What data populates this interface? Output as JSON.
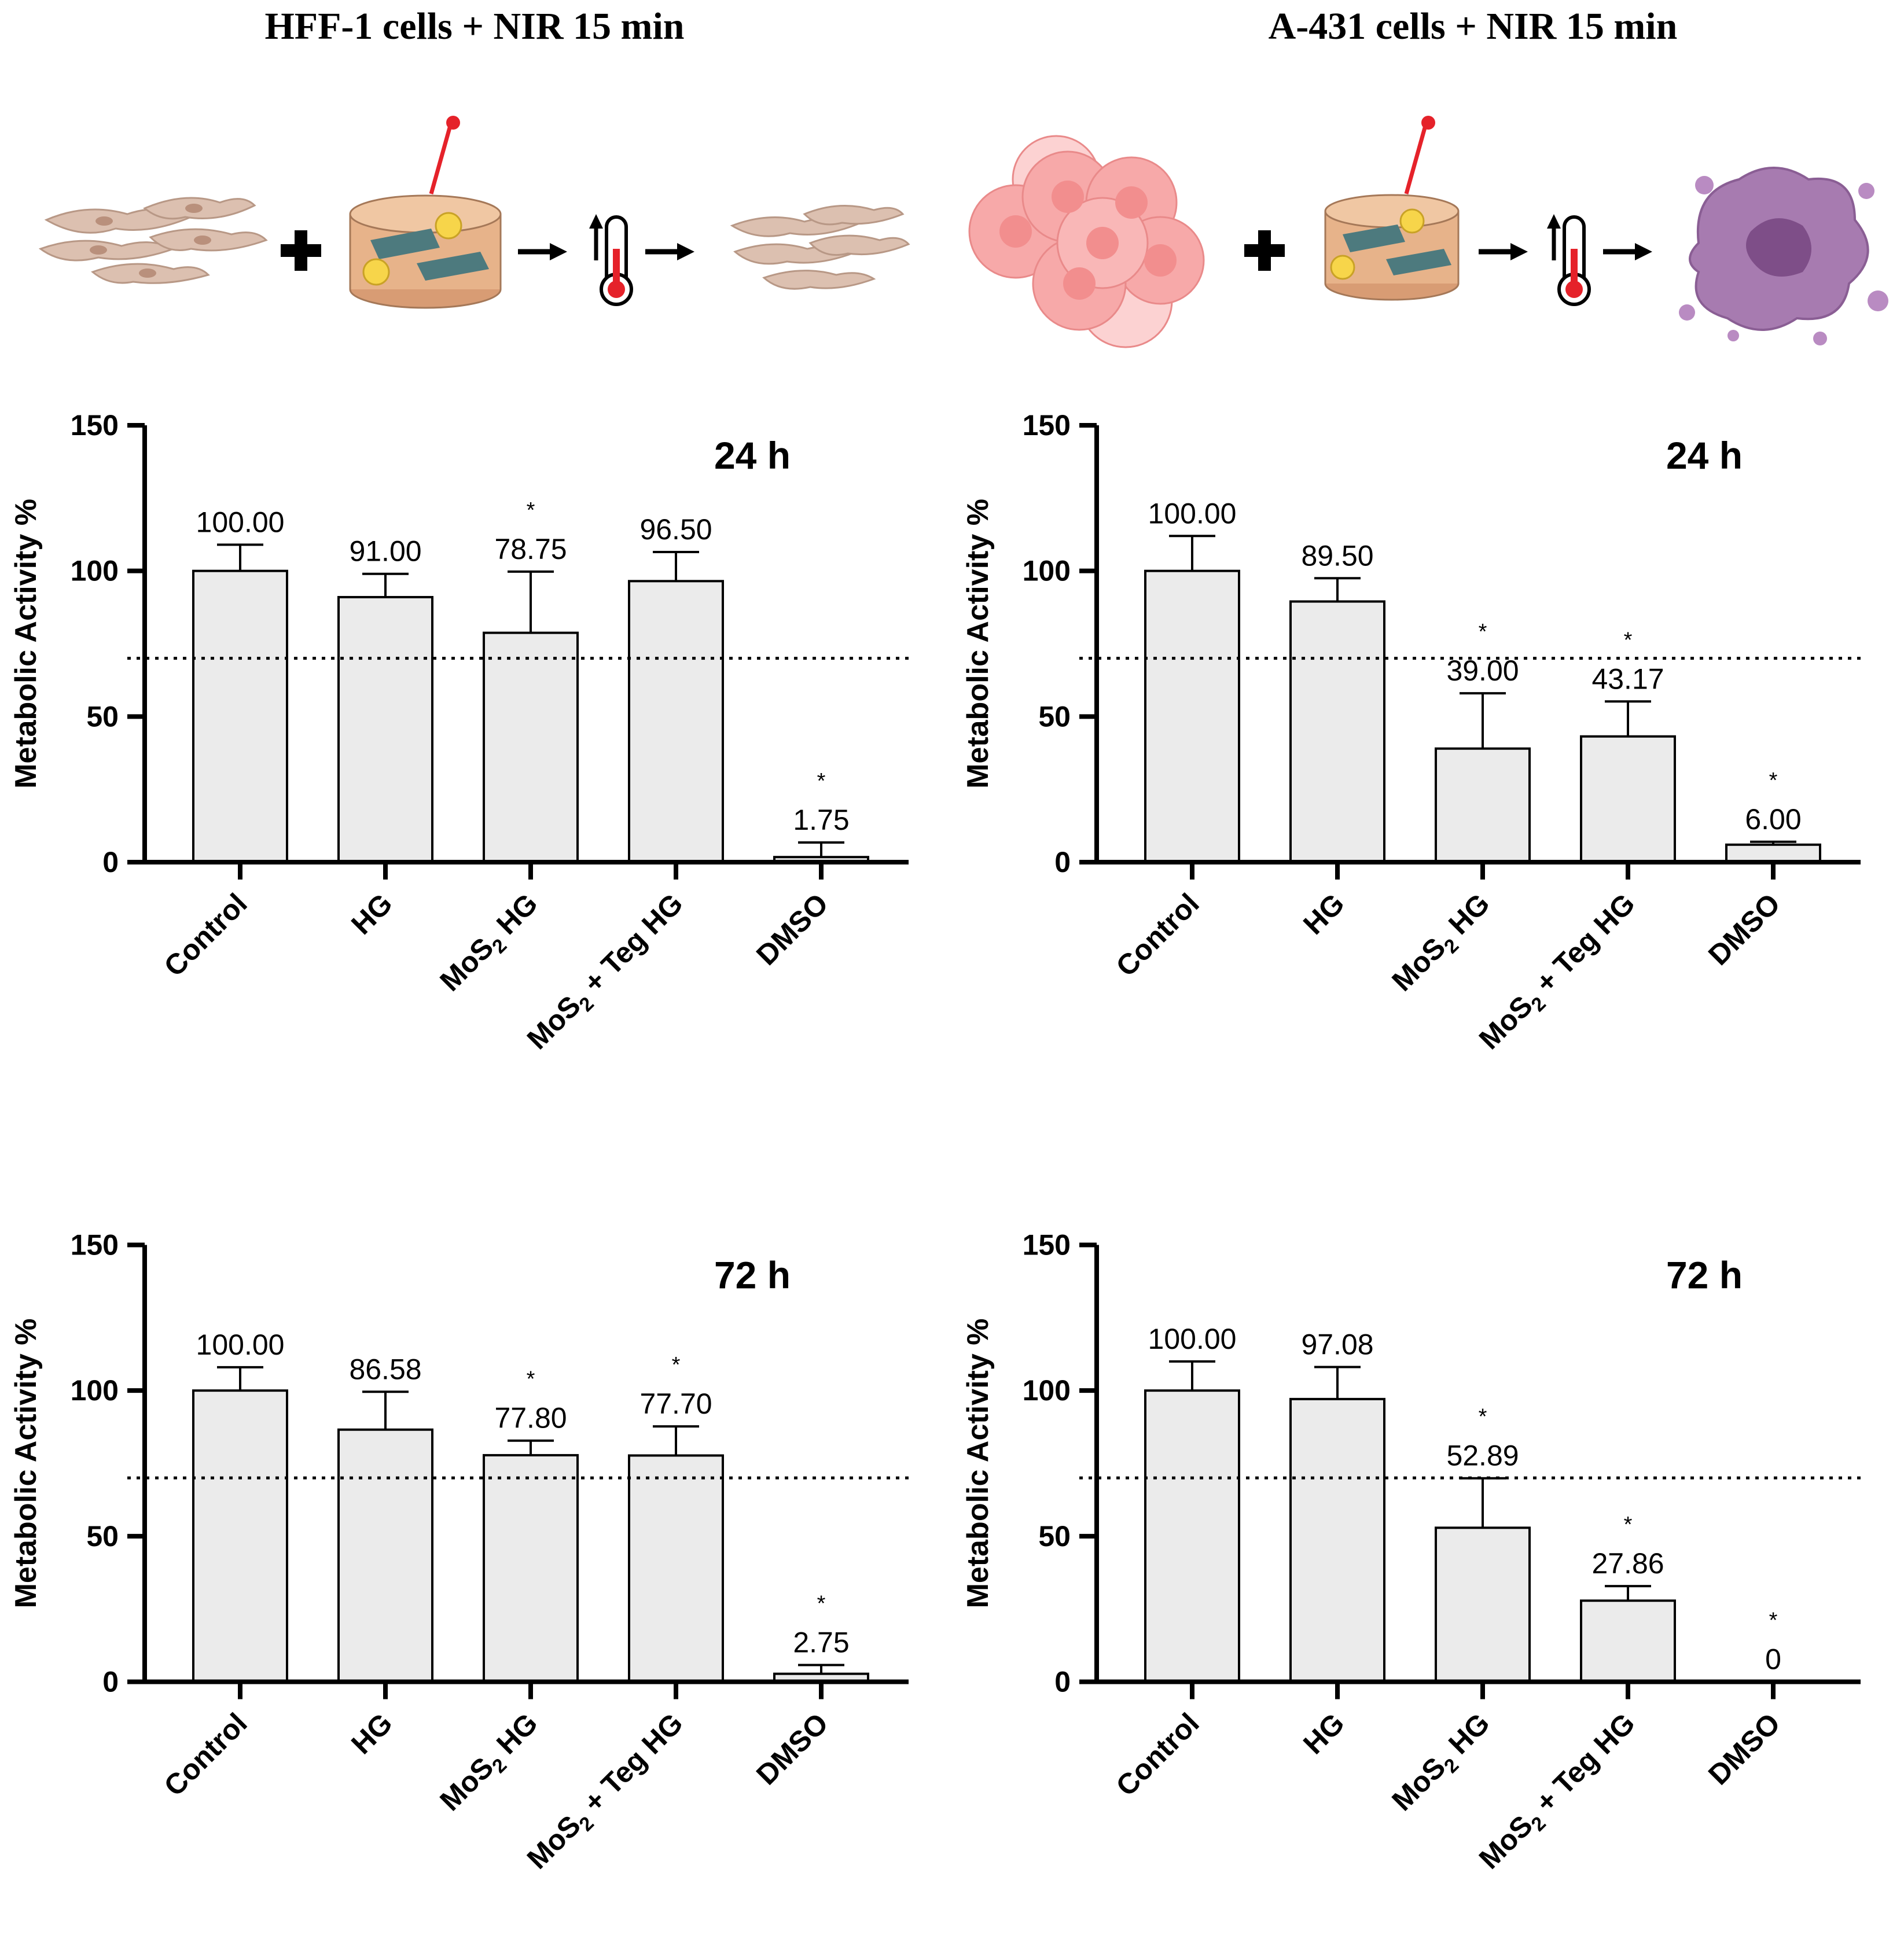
{
  "panels": {
    "left_title": "HFF-1 cells + NIR 15 min",
    "right_title": "A-431 cells + NIR 15 min"
  },
  "colors": {
    "bar_fill": "#ebebeb",
    "bar_stroke": "#000000",
    "normal_cell": "#dcc0b0",
    "cancer_cell": "#f7a9a9",
    "dead_cell": "#a77bb0",
    "laser": "#e5222a",
    "hydrogel": "#e7b38a",
    "particle": "#f7d54a",
    "sheet": "#4d7a7e"
  },
  "chart_data": [
    {
      "type": "bar",
      "panel": "HFF-1 24 h",
      "title": "24 h",
      "ylabel": "Metabolic Activity %",
      "xlabel": "",
      "ylim": [
        0,
        150
      ],
      "yticks": [
        "0",
        "50",
        "100",
        "150"
      ],
      "threshold": 70,
      "categories": [
        "Control",
        "HG",
        "MoS2 HG",
        "MoS2 + Teg HG",
        "DMSO"
      ],
      "values": [
        100.0,
        91.0,
        78.75,
        96.5,
        1.75
      ],
      "errors": [
        9,
        8,
        21,
        10,
        5
      ],
      "value_labels": [
        "100.00",
        "91.00",
        "78.75",
        "96.50",
        "1.75"
      ],
      "significant": [
        false,
        false,
        true,
        false,
        true
      ]
    },
    {
      "type": "bar",
      "panel": "A-431 24 h",
      "title": "24 h",
      "ylabel": "Metabolic Activity %",
      "xlabel": "",
      "ylim": [
        0,
        150
      ],
      "yticks": [
        "0",
        "50",
        "100",
        "150"
      ],
      "threshold": 70,
      "categories": [
        "Control",
        "HG",
        "MoS2 HG",
        "MoS2 + Teg HG",
        "DMSO"
      ],
      "values": [
        100.0,
        89.5,
        39.0,
        43.17,
        6.0
      ],
      "errors": [
        12,
        8,
        19,
        12,
        1
      ],
      "value_labels": [
        "100.00",
        "89.50",
        "39.00",
        "43.17",
        "6.00"
      ],
      "significant": [
        false,
        false,
        true,
        true,
        true
      ]
    },
    {
      "type": "bar",
      "panel": "HFF-1 72 h",
      "title": "72 h",
      "ylabel": "Metabolic Activity %",
      "xlabel": "",
      "ylim": [
        0,
        150
      ],
      "yticks": [
        "0",
        "50",
        "100",
        "150"
      ],
      "threshold": 70,
      "categories": [
        "Control",
        "HG",
        "MoS2 HG",
        "MoS2 + Teg HG",
        "DMSO"
      ],
      "values": [
        100.0,
        86.58,
        77.8,
        77.7,
        2.75
      ],
      "errors": [
        8,
        13,
        5,
        10,
        3
      ],
      "value_labels": [
        "100.00",
        "86.58",
        "77.80",
        "77.70",
        "2.75"
      ],
      "significant": [
        false,
        false,
        true,
        true,
        true
      ]
    },
    {
      "type": "bar",
      "panel": "A-431 72 h",
      "title": "72 h",
      "ylabel": "Metabolic Activity %",
      "xlabel": "",
      "ylim": [
        0,
        150
      ],
      "yticks": [
        "0",
        "50",
        "100",
        "150"
      ],
      "threshold": 70,
      "categories": [
        "Control",
        "HG",
        "MoS2 HG",
        "MoS2 + Teg HG",
        "DMSO"
      ],
      "values": [
        100.0,
        97.08,
        52.89,
        27.86,
        0
      ],
      "errors": [
        10,
        11,
        17,
        5,
        0
      ],
      "value_labels": [
        "100.00",
        "97.08",
        "52.89",
        "27.86",
        "0"
      ],
      "significant": [
        false,
        false,
        true,
        true,
        true
      ]
    }
  ]
}
